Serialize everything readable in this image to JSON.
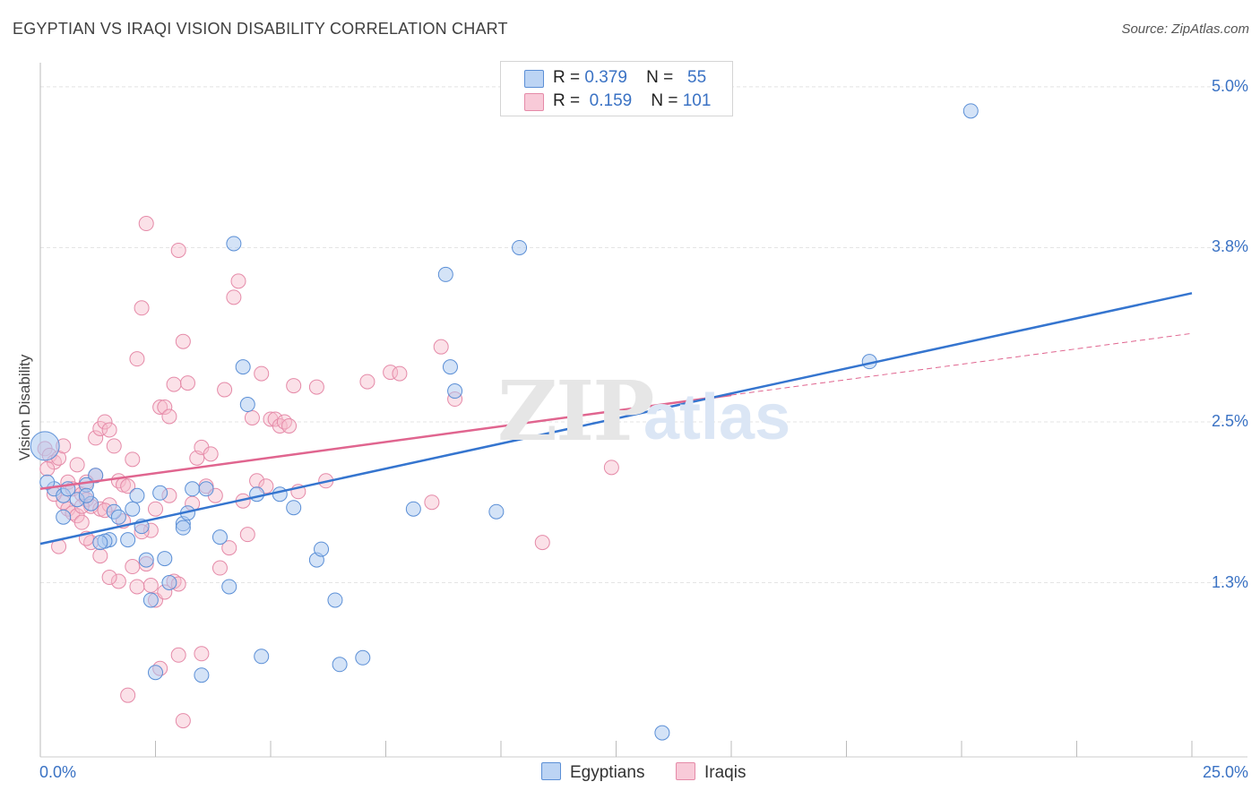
{
  "header": {
    "title": "EGYPTIAN VS IRAQI VISION DISABILITY CORRELATION CHART",
    "source": "Source: ZipAtlas.com"
  },
  "stats": {
    "egyptians": {
      "r_label": "R =",
      "r_value": "0.379",
      "n_label": "N =",
      "n_value": "55"
    },
    "iraqis": {
      "r_label": "R =",
      "r_value": "0.159",
      "n_label": "N =",
      "n_value": "101"
    }
  },
  "legend": {
    "egyptians": "Egyptians",
    "iraqis": "Iraqis"
  },
  "watermark": {
    "zip": "ZIP",
    "atlas": "atlas"
  },
  "colors": {
    "egyptians_fill": "#a9c8f0",
    "egyptians_stroke": "#5b8fd6",
    "egyptians_line": "#3575cf",
    "iraqis_fill": "#f6bccd",
    "iraqis_stroke": "#e58aa8",
    "iraqis_line": "#e0658f",
    "tick_text": "#3a72c4",
    "grid": "#e4e4e4"
  },
  "chart_data": {
    "type": "scatter",
    "title": "EGYPTIAN VS IRAQI VISION DISABILITY CORRELATION CHART",
    "xlabel": "",
    "ylabel": "Vision Disability",
    "xlim": [
      0,
      25
    ],
    "ylim": [
      0.0,
      5.18
    ],
    "x_tick_labels": [
      {
        "value": 0,
        "label": "0.0%"
      },
      {
        "value": 25,
        "label": "25.0%"
      }
    ],
    "y_ticks": [
      {
        "value": 1.3,
        "label": "1.3%"
      },
      {
        "value": 2.5,
        "label": "2.5%"
      },
      {
        "value": 3.8,
        "label": "3.8%"
      },
      {
        "value": 5.0,
        "label": "5.0%"
      }
    ],
    "x_minor_ticks": [
      2.5,
      5,
      7.5,
      10,
      12.5,
      15,
      17.5,
      20,
      22.5,
      25
    ],
    "series": [
      {
        "name": "Egyptians",
        "r": 0.379,
        "n": 55,
        "trend": {
          "x": [
            0,
            25
          ],
          "y": [
            1.59,
            3.46
          ]
        },
        "points": [
          [
            0.1,
            2.32
          ],
          [
            0.3,
            2.0
          ],
          [
            0.5,
            1.95
          ],
          [
            0.8,
            1.92
          ],
          [
            0.5,
            1.79
          ],
          [
            1.1,
            1.89
          ],
          [
            1.2,
            2.1
          ],
          [
            1.0,
            2.03
          ],
          [
            1.5,
            1.62
          ],
          [
            1.4,
            1.61
          ],
          [
            1.3,
            1.6
          ],
          [
            1.6,
            1.83
          ],
          [
            1.7,
            1.79
          ],
          [
            1.9,
            1.62
          ],
          [
            2.1,
            1.95
          ],
          [
            2.2,
            1.72
          ],
          [
            2.3,
            1.47
          ],
          [
            2.4,
            1.17
          ],
          [
            2.5,
            0.63
          ],
          [
            2.7,
            1.48
          ],
          [
            2.8,
            1.3
          ],
          [
            2.6,
            1.97
          ],
          [
            3.1,
            1.74
          ],
          [
            3.2,
            1.82
          ],
          [
            3.1,
            1.71
          ],
          [
            3.3,
            2.0
          ],
          [
            3.5,
            0.61
          ],
          [
            3.6,
            2.0
          ],
          [
            3.9,
            1.64
          ],
          [
            4.1,
            1.27
          ],
          [
            4.2,
            3.83
          ],
          [
            4.4,
            2.91
          ],
          [
            4.5,
            2.63
          ],
          [
            4.7,
            1.96
          ],
          [
            4.8,
            0.75
          ],
          [
            5.2,
            1.96
          ],
          [
            5.5,
            1.86
          ],
          [
            6.0,
            1.47
          ],
          [
            6.1,
            1.55
          ],
          [
            6.4,
            1.17
          ],
          [
            6.5,
            0.69
          ],
          [
            7.0,
            0.74
          ],
          [
            8.1,
            1.85
          ],
          [
            8.8,
            3.6
          ],
          [
            8.9,
            2.91
          ],
          [
            9.0,
            2.73
          ],
          [
            9.9,
            1.83
          ],
          [
            10.4,
            3.8
          ],
          [
            13.5,
            0.18
          ],
          [
            18.0,
            2.95
          ],
          [
            20.2,
            4.82
          ],
          [
            0.15,
            2.05
          ],
          [
            0.6,
            2.0
          ],
          [
            1.0,
            1.95
          ],
          [
            2.0,
            1.85
          ]
        ]
      },
      {
        "name": "Iraqis",
        "r": 0.159,
        "n": 101,
        "trend_solid": {
          "x": [
            0,
            15
          ],
          "y": [
            2.0,
            2.7
          ]
        },
        "trend_dashed": {
          "x": [
            15,
            25
          ],
          "y": [
            2.7,
            3.16
          ]
        },
        "points": [
          [
            0.1,
            2.3
          ],
          [
            0.2,
            2.25
          ],
          [
            0.3,
            2.2
          ],
          [
            0.15,
            2.15
          ],
          [
            0.4,
            2.23
          ],
          [
            0.5,
            2.32
          ],
          [
            0.6,
            2.05
          ],
          [
            0.7,
            2.0
          ],
          [
            0.8,
            2.18
          ],
          [
            0.9,
            1.96
          ],
          [
            1.0,
            1.92
          ],
          [
            1.1,
            1.87
          ],
          [
            1.2,
            2.1
          ],
          [
            1.3,
            1.85
          ],
          [
            0.4,
            1.57
          ],
          [
            0.5,
            1.9
          ],
          [
            0.6,
            1.85
          ],
          [
            0.7,
            1.82
          ],
          [
            0.8,
            1.8
          ],
          [
            0.9,
            1.87
          ],
          [
            1.0,
            2.05
          ],
          [
            1.1,
            1.6
          ],
          [
            1.2,
            2.38
          ],
          [
            1.3,
            2.45
          ],
          [
            1.4,
            2.5
          ],
          [
            1.5,
            2.44
          ],
          [
            1.6,
            2.32
          ],
          [
            1.7,
            2.06
          ],
          [
            1.8,
            2.03
          ],
          [
            1.9,
            2.02
          ],
          [
            2.0,
            2.22
          ],
          [
            2.1,
            2.97
          ],
          [
            2.2,
            3.35
          ],
          [
            2.3,
            3.98
          ],
          [
            2.4,
            1.69
          ],
          [
            2.5,
            1.85
          ],
          [
            2.6,
            2.61
          ],
          [
            2.7,
            2.61
          ],
          [
            2.8,
            2.54
          ],
          [
            2.9,
            2.78
          ],
          [
            3.0,
            3.78
          ],
          [
            3.1,
            3.1
          ],
          [
            3.2,
            2.79
          ],
          [
            3.3,
            1.89
          ],
          [
            3.4,
            2.23
          ],
          [
            3.5,
            2.31
          ],
          [
            3.6,
            2.02
          ],
          [
            3.7,
            2.26
          ],
          [
            3.8,
            1.95
          ],
          [
            3.9,
            1.41
          ],
          [
            4.0,
            2.74
          ],
          [
            4.1,
            1.56
          ],
          [
            4.2,
            3.43
          ],
          [
            4.3,
            3.55
          ],
          [
            4.4,
            1.91
          ],
          [
            4.5,
            1.66
          ],
          [
            4.6,
            2.53
          ],
          [
            4.7,
            2.06
          ],
          [
            4.8,
            2.86
          ],
          [
            4.9,
            2.02
          ],
          [
            5.0,
            2.52
          ],
          [
            5.1,
            2.52
          ],
          [
            5.2,
            2.47
          ],
          [
            5.3,
            2.5
          ],
          [
            5.4,
            2.47
          ],
          [
            5.5,
            2.77
          ],
          [
            5.6,
            1.98
          ],
          [
            6.0,
            2.76
          ],
          [
            6.2,
            2.06
          ],
          [
            7.1,
            2.8
          ],
          [
            7.6,
            2.87
          ],
          [
            7.8,
            2.86
          ],
          [
            8.5,
            1.9
          ],
          [
            8.7,
            3.06
          ],
          [
            9.0,
            2.67
          ],
          [
            10.9,
            1.6
          ],
          [
            12.4,
            2.16
          ],
          [
            2.6,
            0.66
          ],
          [
            3.0,
            0.76
          ],
          [
            3.1,
            0.27
          ],
          [
            3.5,
            0.77
          ],
          [
            1.9,
            0.46
          ],
          [
            2.4,
            1.28
          ],
          [
            2.1,
            1.27
          ],
          [
            1.7,
            1.31
          ],
          [
            2.0,
            1.42
          ],
          [
            2.3,
            1.44
          ],
          [
            1.5,
            1.34
          ],
          [
            1.3,
            1.5
          ],
          [
            2.9,
            1.31
          ],
          [
            3.0,
            1.29
          ],
          [
            2.5,
            1.17
          ],
          [
            2.7,
            1.23
          ],
          [
            1.0,
            1.63
          ],
          [
            1.5,
            1.88
          ],
          [
            2.2,
            1.68
          ],
          [
            2.8,
            1.95
          ],
          [
            1.8,
            1.76
          ],
          [
            0.3,
            1.96
          ],
          [
            0.9,
            1.75
          ],
          [
            1.4,
            1.84
          ]
        ]
      }
    ]
  }
}
